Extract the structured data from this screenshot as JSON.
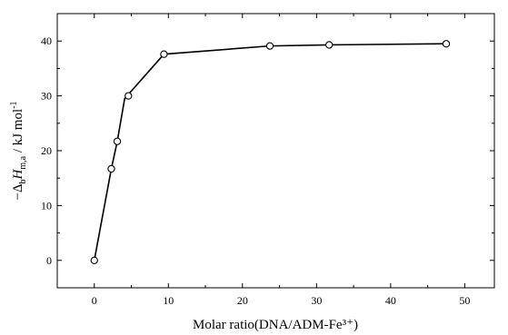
{
  "chart_data": {
    "type": "scatter",
    "title": "",
    "xlabel": "Molar ratio(DNA/ADM-Fe³⁺)",
    "ylabel_parts": {
      "prefix": "−Δ",
      "sub_b": "b",
      "H": "H",
      "sub_ma": "m,a",
      "unit": " / kJ mol",
      "sup": "-1"
    },
    "xlim": [
      -5,
      54
    ],
    "ylim": [
      -5,
      45
    ],
    "xticks": [
      0,
      10,
      20,
      30,
      40,
      50
    ],
    "yticks": [
      0,
      10,
      20,
      30,
      40
    ],
    "grid": false,
    "legend": "none",
    "series": [
      {
        "marker": "open-circle",
        "points": [
          {
            "x": 0,
            "y": 0
          },
          {
            "x": 2.3,
            "y": 16.7
          },
          {
            "x": 3.1,
            "y": 21.7
          },
          {
            "x": 4.6,
            "y": 30.0
          },
          {
            "x": 9.4,
            "y": 37.6
          },
          {
            "x": 23.7,
            "y": 39.1
          },
          {
            "x": 31.7,
            "y": 39.3
          },
          {
            "x": 47.5,
            "y": 39.5
          }
        ]
      }
    ],
    "fitted_curve": [
      {
        "x": 0,
        "y": 0
      },
      {
        "x": 2.3,
        "y": 16.7
      },
      {
        "x": 3.1,
        "y": 21.7
      },
      {
        "x": 4.1,
        "y": 29.5
      },
      {
        "x": 9.4,
        "y": 37.6
      },
      {
        "x": 23.7,
        "y": 39.1
      },
      {
        "x": 31.7,
        "y": 39.3
      },
      {
        "x": 47.5,
        "y": 39.5
      }
    ]
  }
}
